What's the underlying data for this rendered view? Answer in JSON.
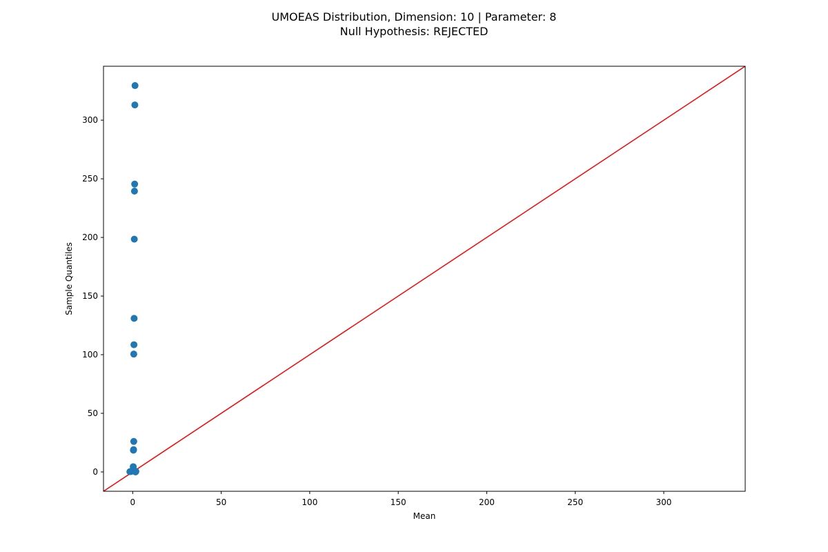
{
  "chart_data": {
    "type": "scatter",
    "title_line1": "UMOEAS Distribution, Dimension: 10 | Parameter: 8",
    "title_line2": "Null Hypothesis: REJECTED",
    "xlabel": "Mean",
    "ylabel": "Sample Quantiles",
    "xlim": [
      -16.5,
      346
    ],
    "ylim": [
      -16.5,
      346
    ],
    "xticks": [
      0,
      50,
      100,
      150,
      200,
      250,
      300
    ],
    "yticks": [
      0,
      50,
      100,
      150,
      200,
      250,
      300
    ],
    "grid": false,
    "points": {
      "color": "#1f77b4",
      "x": [
        -1.6,
        -1.0,
        -0.6,
        -0.3,
        0.0,
        0.2,
        0.3,
        0.4,
        0.5,
        0.6,
        0.6,
        0.7,
        0.8,
        0.9,
        1.0,
        1.1,
        1.2,
        1.3,
        1.6,
        1.8
      ],
      "y": [
        0.2,
        0.4,
        0.6,
        0.8,
        1.2,
        2.0,
        4.5,
        18.5,
        19.0,
        26.0,
        100.5,
        108.5,
        131.0,
        198.5,
        239.5,
        245.5,
        313.0,
        329.5,
        0.0,
        0.5
      ]
    },
    "reference_line": {
      "color": "#ff0000",
      "x": [
        -16.5,
        346
      ],
      "y": [
        -16.5,
        346
      ]
    }
  }
}
